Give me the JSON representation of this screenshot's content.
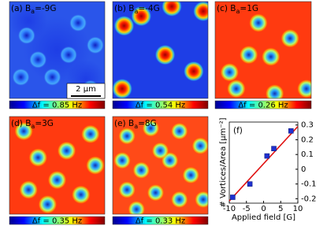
{
  "panels": [
    {
      "prefix": "(a) B",
      "sub": "a",
      "suffix": "=-9G",
      "colorbar": "Δf = 0.85 Hz",
      "scalebar": "2 μm"
    },
    {
      "prefix": "(b) B",
      "sub": "a",
      "suffix": "=-4G",
      "colorbar": "Δf = 0.54 Hz"
    },
    {
      "prefix": "(c) B",
      "sub": "a",
      "suffix": "=1G",
      "colorbar": "Δf = 0.26 Hz"
    },
    {
      "prefix": "(d) B",
      "sub": "a",
      "suffix": "=3G",
      "colorbar": "Δf = 0.35 Hz"
    },
    {
      "prefix": "(e) B",
      "sub": "a",
      "suffix": "=8G",
      "colorbar": "Δf = 0.33 Hz"
    }
  ],
  "chart_data": {
    "type": "scatter",
    "label": "(f)",
    "x_label": "Applied field [G]",
    "y_label": "# Vortices/Area [μm⁻²]",
    "xlim": [
      -10,
      10
    ],
    "xticks": [
      -10,
      -5,
      0,
      5,
      10
    ],
    "ylim": [
      -0.23,
      0.32
    ],
    "yticks": [
      -0.2,
      -0.1,
      0,
      0.1,
      0.2,
      0.3
    ],
    "points": {
      "color": "#2030d0",
      "x": [
        -9,
        -4,
        1,
        3,
        8
      ],
      "values": [
        -0.19,
        -0.1,
        0.09,
        0.14,
        0.26
      ]
    },
    "fit_line": {
      "color": "#e01010",
      "x": [
        -10,
        10
      ],
      "values": [
        -0.215,
        0.29
      ]
    }
  }
}
